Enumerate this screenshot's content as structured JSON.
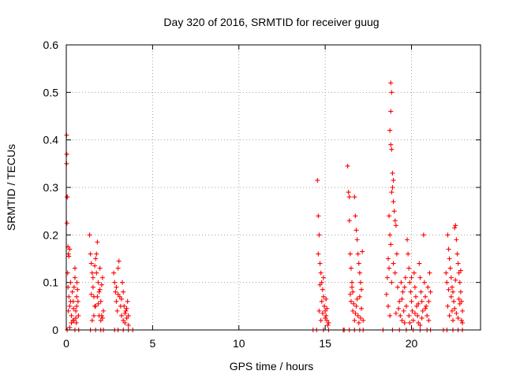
{
  "chart_data": {
    "type": "scatter",
    "title": "Day 320 of 2016, SRMTID for receiver guug",
    "xlabel": "GPS time / hours",
    "ylabel": "SRMTID / TECUs",
    "xlim": [
      0,
      24
    ],
    "ylim": [
      0,
      0.6
    ],
    "xticks": [
      0,
      5,
      10,
      15,
      20
    ],
    "xtick_labels": [
      "0",
      "5",
      "10",
      "15",
      "20"
    ],
    "yticks": [
      0,
      0.1,
      0.2,
      0.3,
      0.4,
      0.5,
      0.6
    ],
    "ytick_labels": [
      "0",
      "0.1",
      "0.2",
      "0.3",
      "0.4",
      "0.5",
      "0.6"
    ],
    "grid": true,
    "legend": "none",
    "marker": "plus",
    "color": "#ff0000",
    "series": [
      {
        "points": [
          [
            0.02,
            0.41
          ],
          [
            0.03,
            0.37
          ],
          [
            0.02,
            0.35
          ],
          [
            0.05,
            0.28
          ],
          [
            0.04,
            0.225
          ],
          [
            0.06,
            0.28
          ],
          [
            0.1,
            0.175
          ],
          [
            0.12,
            0.16
          ],
          [
            0.15,
            0.155
          ],
          [
            0.2,
            0.17
          ],
          [
            0.08,
            0.12
          ],
          [
            0.1,
            0.09
          ],
          [
            0.15,
            0.07
          ],
          [
            0.2,
            0.05
          ],
          [
            0.25,
            0.1
          ],
          [
            0.3,
            0.03
          ],
          [
            0.35,
            0.08
          ],
          [
            0.4,
            0.06
          ],
          [
            0.45,
            0.02
          ],
          [
            0.5,
            0.11
          ],
          [
            0.55,
            0.04
          ],
          [
            0.6,
            0.07
          ],
          [
            0.2,
            0.005
          ],
          [
            0.3,
            0.015
          ],
          [
            0.45,
            0.09
          ],
          [
            0.5,
            0.13
          ],
          [
            0.55,
            0.025
          ],
          [
            0.6,
            0.05
          ],
          [
            0.65,
            0.085
          ],
          [
            0.7,
            0.03
          ],
          [
            0.12,
            0.04
          ],
          [
            0.25,
            0.06
          ],
          [
            0.38,
            0.02
          ],
          [
            0.42,
            0.045
          ],
          [
            0.58,
            0.015
          ],
          [
            0.62,
            0.1
          ],
          [
            0.68,
            0.06
          ],
          [
            0.72,
            0.0
          ],
          [
            0.5,
            0.0
          ],
          [
            0.05,
            0.0
          ],
          [
            1.35,
            0.2
          ],
          [
            1.4,
            0.16
          ],
          [
            1.45,
            0.14
          ],
          [
            1.5,
            0.12
          ],
          [
            1.55,
            0.09
          ],
          [
            1.6,
            0.07
          ],
          [
            1.65,
            0.05
          ],
          [
            1.7,
            0.15
          ],
          [
            1.75,
            0.12
          ],
          [
            1.8,
            0.185
          ],
          [
            1.85,
            0.1
          ],
          [
            1.9,
            0.08
          ],
          [
            1.95,
            0.13
          ],
          [
            2.0,
            0.06
          ],
          [
            2.05,
            0.03
          ],
          [
            2.1,
            0.11
          ],
          [
            2.15,
            0.04
          ],
          [
            1.5,
            0.02
          ],
          [
            1.6,
            0.03
          ],
          [
            1.7,
            0.05
          ],
          [
            1.8,
            0.07
          ],
          [
            1.9,
            0.03
          ],
          [
            2.0,
            0.02
          ],
          [
            2.1,
            0.025
          ],
          [
            1.45,
            0.075
          ],
          [
            1.55,
            0.11
          ],
          [
            1.65,
            0.135
          ],
          [
            1.75,
            0.16
          ],
          [
            1.85,
            0.055
          ],
          [
            1.95,
            0.085
          ],
          [
            2.05,
            0.095
          ],
          [
            1.4,
            0.0
          ],
          [
            1.7,
            0.0
          ],
          [
            2.0,
            0.0
          ],
          [
            2.15,
            0.0
          ],
          [
            2.75,
            0.12
          ],
          [
            2.8,
            0.1
          ],
          [
            2.85,
            0.08
          ],
          [
            2.9,
            0.06
          ],
          [
            2.95,
            0.04
          ],
          [
            3.0,
            0.13
          ],
          [
            3.05,
            0.145
          ],
          [
            3.1,
            0.07
          ],
          [
            3.15,
            0.05
          ],
          [
            3.2,
            0.03
          ],
          [
            3.25,
            0.1
          ],
          [
            3.3,
            0.02
          ],
          [
            3.35,
            0.05
          ],
          [
            3.4,
            0.015
          ],
          [
            3.45,
            0.04
          ],
          [
            3.5,
            0.025
          ],
          [
            3.55,
            0.06
          ],
          [
            3.6,
            0.01
          ],
          [
            2.9,
            0.09
          ],
          [
            3.0,
            0.075
          ],
          [
            3.2,
            0.065
          ],
          [
            3.3,
            0.08
          ],
          [
            3.4,
            0.035
          ],
          [
            3.5,
            0.045
          ],
          [
            3.6,
            0.03
          ],
          [
            2.8,
            0.0
          ],
          [
            3.0,
            0.0
          ],
          [
            3.3,
            0.0
          ],
          [
            3.6,
            0.0
          ],
          [
            3.85,
            0.0
          ],
          [
            14.3,
            0.0
          ],
          [
            14.55,
            0.315
          ],
          [
            14.6,
            0.24
          ],
          [
            14.65,
            0.2
          ],
          [
            14.7,
            0.14
          ],
          [
            14.75,
            0.12
          ],
          [
            14.8,
            0.1
          ],
          [
            14.85,
            0.085
          ],
          [
            14.9,
            0.07
          ],
          [
            14.95,
            0.05
          ],
          [
            15.0,
            0.04
          ],
          [
            15.05,
            0.03
          ],
          [
            15.1,
            0.02
          ],
          [
            15.15,
            0.01
          ],
          [
            14.6,
            0.16
          ],
          [
            14.7,
            0.095
          ],
          [
            14.8,
            0.06
          ],
          [
            14.9,
            0.11
          ],
          [
            15.0,
            0.025
          ],
          [
            15.1,
            0.045
          ],
          [
            15.2,
            0.015
          ],
          [
            14.65,
            0.04
          ],
          [
            14.75,
            0.02
          ],
          [
            14.85,
            0.035
          ],
          [
            15.05,
            0.065
          ],
          [
            14.5,
            0.0
          ],
          [
            14.9,
            0.0
          ],
          [
            15.2,
            0.0
          ],
          [
            16.05,
            0.0
          ],
          [
            16.1,
            0.0
          ],
          [
            16.3,
            0.345
          ],
          [
            16.35,
            0.29
          ],
          [
            16.4,
            0.28
          ],
          [
            16.4,
            0.23
          ],
          [
            16.45,
            0.16
          ],
          [
            16.5,
            0.13
          ],
          [
            16.55,
            0.1
          ],
          [
            16.6,
            0.08
          ],
          [
            16.7,
            0.28
          ],
          [
            16.75,
            0.24
          ],
          [
            16.8,
            0.21
          ],
          [
            16.85,
            0.19
          ],
          [
            16.9,
            0.16
          ],
          [
            16.95,
            0.14
          ],
          [
            17.0,
            0.12
          ],
          [
            17.05,
            0.1
          ],
          [
            17.1,
            0.085
          ],
          [
            17.15,
            0.165
          ],
          [
            16.5,
            0.06
          ],
          [
            16.6,
            0.04
          ],
          [
            16.7,
            0.02
          ],
          [
            16.8,
            0.05
          ],
          [
            16.9,
            0.03
          ],
          [
            17.0,
            0.07
          ],
          [
            17.1,
            0.045
          ],
          [
            17.2,
            0.02
          ],
          [
            16.45,
            0.075
          ],
          [
            16.55,
            0.09
          ],
          [
            16.65,
            0.055
          ],
          [
            16.75,
            0.035
          ],
          [
            16.85,
            0.065
          ],
          [
            16.95,
            0.015
          ],
          [
            17.05,
            0.025
          ],
          [
            16.4,
            0.0
          ],
          [
            16.7,
            0.0
          ],
          [
            17.0,
            0.0
          ],
          [
            17.2,
            0.0
          ],
          [
            18.35,
            0.0
          ],
          [
            18.8,
            0.52
          ],
          [
            18.85,
            0.5
          ],
          [
            18.8,
            0.46
          ],
          [
            18.75,
            0.42
          ],
          [
            18.8,
            0.39
          ],
          [
            18.85,
            0.38
          ],
          [
            18.9,
            0.33
          ],
          [
            18.95,
            0.315
          ],
          [
            18.9,
            0.3
          ],
          [
            18.85,
            0.29
          ],
          [
            18.95,
            0.27
          ],
          [
            19.0,
            0.25
          ],
          [
            19.05,
            0.23
          ],
          [
            19.1,
            0.22
          ],
          [
            18.7,
            0.24
          ],
          [
            18.75,
            0.2
          ],
          [
            18.8,
            0.18
          ],
          [
            18.65,
            0.15
          ],
          [
            18.7,
            0.13
          ],
          [
            18.6,
            0.11
          ],
          [
            18.55,
            0.075
          ],
          [
            18.65,
            0.05
          ],
          [
            18.75,
            0.03
          ],
          [
            18.85,
            0.1
          ],
          [
            18.95,
            0.14
          ],
          [
            19.05,
            0.12
          ],
          [
            19.15,
            0.16
          ],
          [
            19.2,
            0.09
          ],
          [
            19.3,
            0.06
          ],
          [
            19.35,
            0.03
          ],
          [
            19.4,
            0.1
          ],
          [
            19.45,
            0.02
          ],
          [
            19.5,
            0.08
          ],
          [
            19.55,
            0.04
          ],
          [
            19.6,
            0.015
          ],
          [
            19.65,
            0.11
          ],
          [
            19.7,
            0.05
          ],
          [
            19.75,
            0.19
          ],
          [
            19.8,
            0.16
          ],
          [
            19.85,
            0.13
          ],
          [
            19.9,
            0.1
          ],
          [
            19.95,
            0.08
          ],
          [
            20.0,
            0.06
          ],
          [
            20.05,
            0.04
          ],
          [
            20.1,
            0.02
          ],
          [
            20.15,
            0.12
          ],
          [
            20.2,
            0.09
          ],
          [
            20.25,
            0.07
          ],
          [
            20.3,
            0.05
          ],
          [
            20.35,
            0.03
          ],
          [
            20.4,
            0.015
          ],
          [
            20.45,
            0.14
          ],
          [
            20.5,
            0.11
          ],
          [
            20.55,
            0.08
          ],
          [
            20.6,
            0.06
          ],
          [
            20.65,
            0.04
          ],
          [
            20.7,
            0.2
          ],
          [
            20.75,
            0.1
          ],
          [
            20.8,
            0.07
          ],
          [
            20.85,
            0.05
          ],
          [
            20.9,
            0.03
          ],
          [
            20.95,
            0.09
          ],
          [
            21.0,
            0.06
          ],
          [
            21.05,
            0.12
          ],
          [
            21.1,
            0.08
          ],
          [
            19.25,
            0.045
          ],
          [
            19.45,
            0.065
          ],
          [
            19.6,
            0.09
          ],
          [
            19.85,
            0.03
          ],
          [
            20.0,
            0.11
          ],
          [
            20.2,
            0.035
          ],
          [
            20.4,
            0.055
          ],
          [
            20.6,
            0.025
          ],
          [
            20.8,
            0.045
          ],
          [
            21.0,
            0.02
          ],
          [
            19.1,
            0.035
          ],
          [
            19.9,
            0.015
          ],
          [
            20.5,
            0.01
          ],
          [
            18.9,
            0.0
          ],
          [
            19.3,
            0.0
          ],
          [
            19.7,
            0.0
          ],
          [
            20.1,
            0.0
          ],
          [
            20.5,
            0.0
          ],
          [
            20.9,
            0.0
          ],
          [
            21.1,
            0.0
          ],
          [
            21.85,
            0.0
          ],
          [
            22.0,
            0.12
          ],
          [
            22.05,
            0.1
          ],
          [
            22.1,
            0.2
          ],
          [
            22.15,
            0.17
          ],
          [
            22.2,
            0.15
          ],
          [
            22.25,
            0.13
          ],
          [
            22.3,
            0.11
          ],
          [
            22.35,
            0.09
          ],
          [
            22.4,
            0.08
          ],
          [
            22.45,
            0.06
          ],
          [
            22.5,
            0.215
          ],
          [
            22.55,
            0.22
          ],
          [
            22.6,
            0.19
          ],
          [
            22.65,
            0.16
          ],
          [
            22.7,
            0.14
          ],
          [
            22.75,
            0.12
          ],
          [
            22.8,
            0.1
          ],
          [
            22.85,
            0.08
          ],
          [
            22.9,
            0.06
          ],
          [
            22.95,
            0.04
          ],
          [
            22.1,
            0.05
          ],
          [
            22.2,
            0.03
          ],
          [
            22.3,
            0.07
          ],
          [
            22.4,
            0.02
          ],
          [
            22.5,
            0.045
          ],
          [
            22.6,
            0.035
          ],
          [
            22.7,
            0.025
          ],
          [
            22.8,
            0.055
          ],
          [
            22.9,
            0.02
          ],
          [
            22.95,
            0.015
          ],
          [
            22.15,
            0.085
          ],
          [
            22.35,
            0.04
          ],
          [
            22.55,
            0.105
          ],
          [
            22.75,
            0.065
          ],
          [
            22.85,
            0.125
          ],
          [
            22.05,
            0.0
          ],
          [
            22.4,
            0.0
          ],
          [
            22.7,
            0.0
          ],
          [
            22.95,
            0.0
          ]
        ]
      }
    ]
  }
}
